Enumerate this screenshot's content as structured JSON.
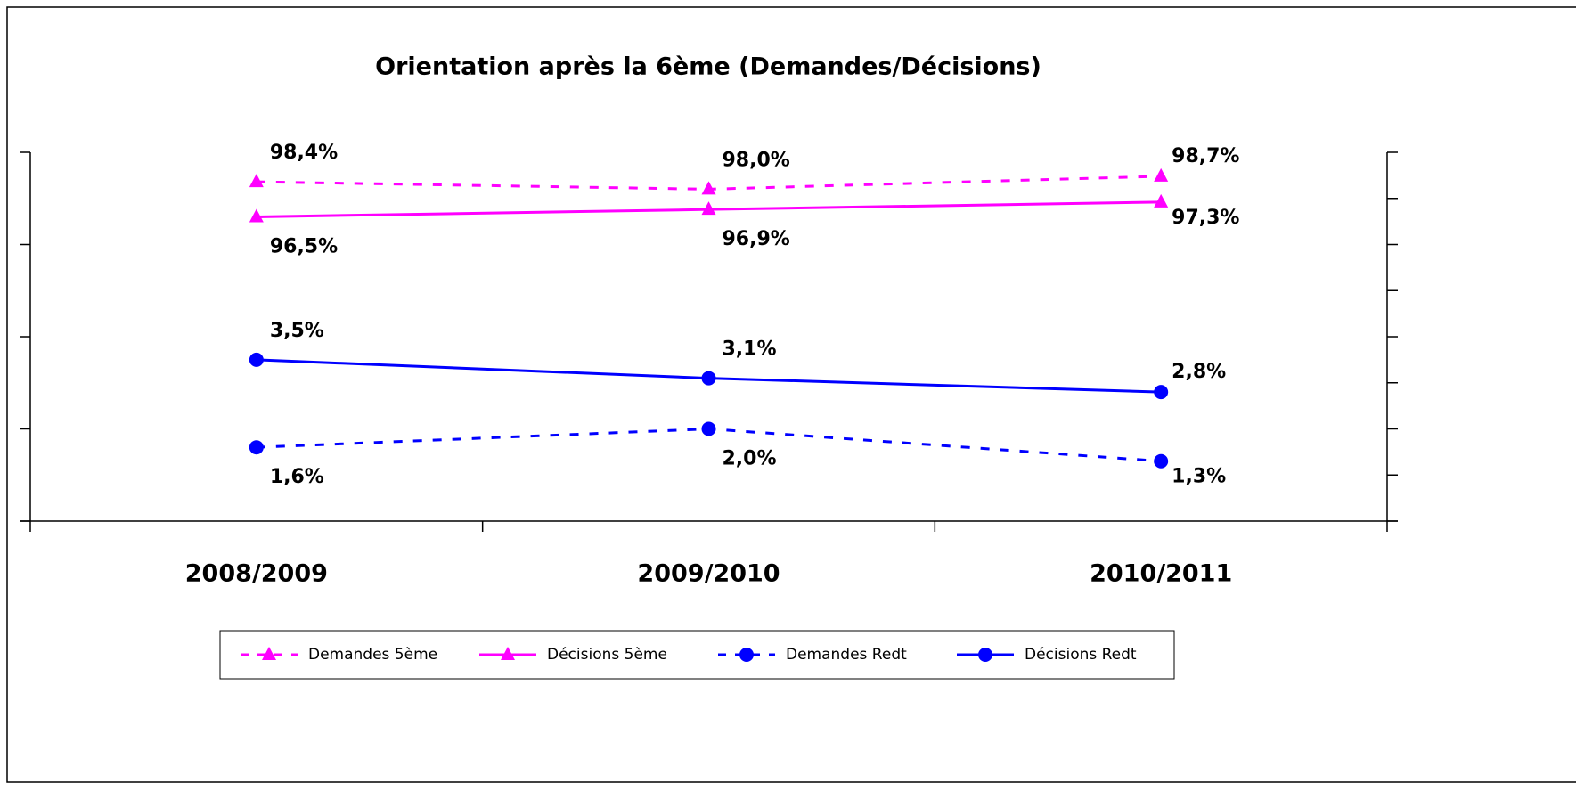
{
  "chart_data": {
    "type": "line",
    "title": "Orientation après la 6ème (Demandes/Décisions)",
    "categories": [
      "2008/2009",
      "2009/2010",
      "2010/2011"
    ],
    "series": [
      {
        "name": "Demandes 5ème",
        "color": "#ff00ff",
        "dashed": true,
        "marker": "triangle",
        "label_position": "above",
        "values": [
          98.4,
          98.0,
          98.7
        ],
        "value_labels": [
          "98,4%",
          "98,0%",
          "98,7%"
        ]
      },
      {
        "name": "Décisions  5ème",
        "color": "#ff00ff",
        "dashed": false,
        "marker": "triangle",
        "label_position": "below",
        "values": [
          96.5,
          96.9,
          97.3
        ],
        "value_labels": [
          "96,5%",
          "96,9%",
          "97,3%"
        ]
      },
      {
        "name": "Demandes Redt",
        "color": "#0000ff",
        "dashed": true,
        "marker": "circle",
        "label_position": "below",
        "axis": "y2",
        "values": [
          1.6,
          2.0,
          1.3
        ],
        "value_labels": [
          "1,6%",
          "2,0%",
          "1,3%"
        ]
      },
      {
        "name": "Décisions Redt",
        "color": "#0000ff",
        "dashed": false,
        "marker": "circle",
        "label_position": "above",
        "axis": "y2",
        "values": [
          3.5,
          3.1,
          2.8
        ],
        "value_labels": [
          "3,5%",
          "3,1%",
          "2,8%"
        ]
      }
    ],
    "ylim": [
      80,
      100
    ],
    "yticks": [
      80,
      85,
      90,
      95,
      100
    ],
    "y2lim": [
      0,
      8
    ],
    "y2ticks": [
      0,
      1,
      2,
      3,
      4,
      5,
      6,
      7,
      8
    ],
    "grid": false,
    "legend": "bottom"
  }
}
